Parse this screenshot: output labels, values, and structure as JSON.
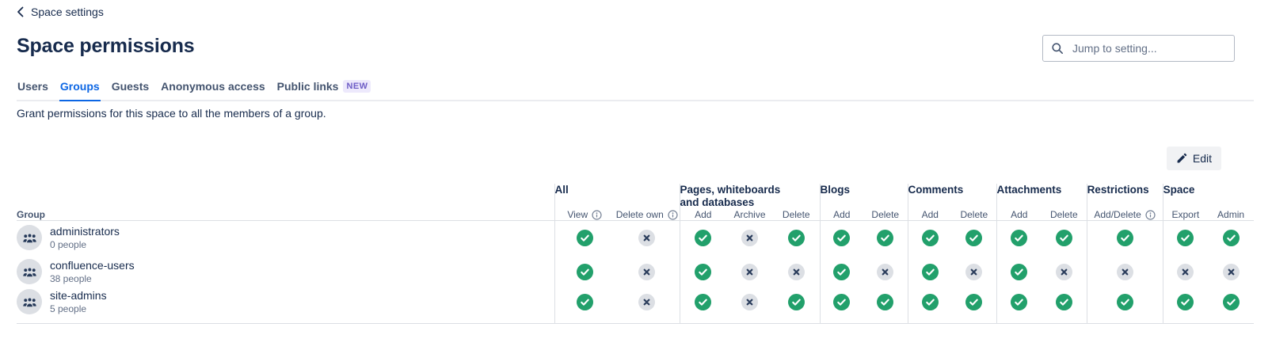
{
  "page": {
    "back_link": "Space settings",
    "title": "Space permissions",
    "description": "Grant permissions for this space to all the members of a group.",
    "edit_button": "Edit",
    "search": {
      "placeholder": "Jump to setting..."
    }
  },
  "tabs": [
    {
      "label": "Users",
      "active": false
    },
    {
      "label": "Groups",
      "active": true
    },
    {
      "label": "Guests",
      "active": false
    },
    {
      "label": "Anonymous access",
      "active": false
    },
    {
      "label": "Public links",
      "active": false,
      "badge": "NEW"
    }
  ],
  "table": {
    "row_header": "Group",
    "column_groups": [
      {
        "label": "All",
        "columns": [
          {
            "label": "View",
            "info": true
          },
          {
            "label": "Delete own",
            "info": true
          }
        ]
      },
      {
        "label": "Pages, whiteboards and databases",
        "columns": [
          {
            "label": "Add"
          },
          {
            "label": "Archive"
          },
          {
            "label": "Delete"
          }
        ]
      },
      {
        "label": "Blogs",
        "columns": [
          {
            "label": "Add"
          },
          {
            "label": "Delete"
          }
        ]
      },
      {
        "label": "Comments",
        "columns": [
          {
            "label": "Add"
          },
          {
            "label": "Delete"
          }
        ]
      },
      {
        "label": "Attachments",
        "columns": [
          {
            "label": "Add"
          },
          {
            "label": "Delete"
          }
        ]
      },
      {
        "label": "Restrictions",
        "columns": [
          {
            "label": "Add/Delete",
            "info": true
          }
        ]
      },
      {
        "label": "Space",
        "columns": [
          {
            "label": "Export"
          },
          {
            "label": "Admin"
          }
        ]
      }
    ],
    "rows": [
      {
        "name": "administrators",
        "members": "0 people",
        "permissions": [
          "check",
          "cross",
          "check",
          "cross",
          "check",
          "check",
          "check",
          "check",
          "check",
          "check",
          "check",
          "check",
          "check",
          "check"
        ]
      },
      {
        "name": "confluence-users",
        "members": "38 people",
        "permissions": [
          "check",
          "cross",
          "check",
          "cross",
          "cross",
          "check",
          "cross",
          "check",
          "cross",
          "check",
          "cross",
          "cross",
          "cross",
          "cross"
        ]
      },
      {
        "name": "site-admins",
        "members": "5 people",
        "permissions": [
          "check",
          "cross",
          "check",
          "cross",
          "check",
          "check",
          "check",
          "check",
          "check",
          "check",
          "check",
          "check",
          "check",
          "check"
        ]
      }
    ]
  },
  "colors": {
    "accent_blue": "#0C66E4",
    "check_green": "#22A06B",
    "cross_gray_bg": "#DCDFE4",
    "cross_glyph": "#2C3E5D",
    "badge_purple_bg": "#EDE9FC",
    "badge_purple_text": "#6E5DC6",
    "text_primary": "#172B4D",
    "text_secondary": "#626F86"
  }
}
